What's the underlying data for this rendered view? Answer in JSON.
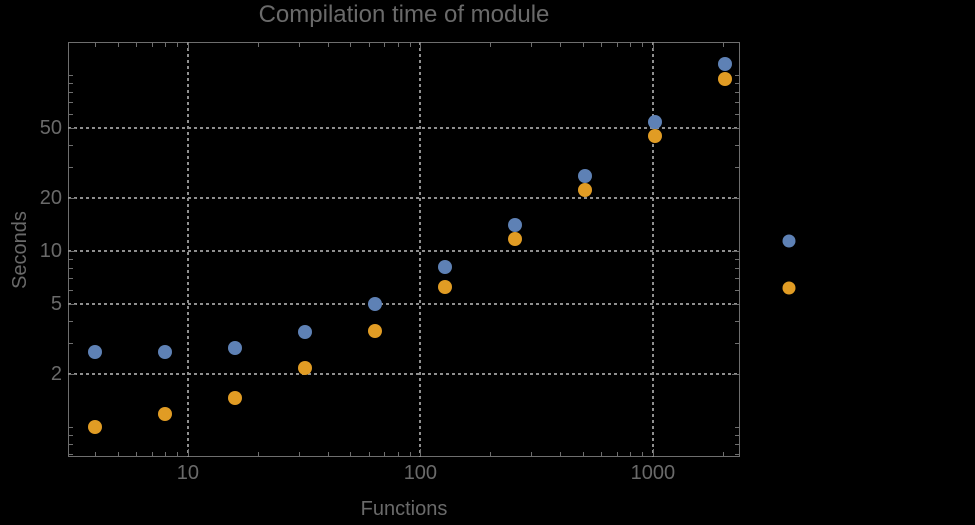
{
  "chart_data": {
    "type": "scatter",
    "title": "Compilation time of module",
    "xlabel": "Functions",
    "ylabel": "Seconds",
    "xscale": "log",
    "yscale": "log",
    "xlim": [
      3.05,
      2370
    ],
    "ylim": [
      0.675,
      154
    ],
    "grid": true,
    "x": [
      4,
      8,
      16,
      32,
      64,
      128,
      256,
      512,
      1024,
      2048
    ],
    "series": [
      {
        "id": "series-1",
        "color": "#5E81B5",
        "values": [
          2.67,
          2.67,
          2.8,
          3.45,
          5.0,
          8.1,
          14.0,
          26.7,
          54,
          115
        ]
      },
      {
        "id": "series-2",
        "color": "#E19C24",
        "values": [
          1.0,
          1.19,
          1.47,
          2.15,
          3.5,
          6.25,
          11.7,
          22.2,
          45,
          95
        ]
      }
    ],
    "x_ticks": {
      "major": [
        {
          "value": 10,
          "label": "10"
        },
        {
          "value": 100,
          "label": "100"
        },
        {
          "value": 1000,
          "label": "1000"
        }
      ],
      "minor": [
        4,
        5,
        6,
        7,
        8,
        9,
        20,
        30,
        40,
        50,
        60,
        70,
        80,
        90,
        200,
        300,
        400,
        500,
        600,
        700,
        800,
        900,
        2000
      ]
    },
    "y_ticks": {
      "major": [
        {
          "value": 50,
          "label": "50"
        },
        {
          "value": 20,
          "label": "20"
        },
        {
          "value": 10,
          "label": "10"
        },
        {
          "value": 5,
          "label": "5"
        },
        {
          "value": 2,
          "label": "2"
        }
      ],
      "minor": [
        0.7,
        0.8,
        0.9,
        1,
        3,
        4,
        6,
        7,
        8,
        9,
        30,
        40,
        60,
        70,
        80,
        90,
        100
      ]
    },
    "legend": {
      "labels_visible": false,
      "markers": [
        {
          "color": "#5E81B5"
        },
        {
          "color": "#E19C24"
        }
      ]
    }
  },
  "styles": {
    "background": "#000000",
    "text_color": "#6a6a6a",
    "frame_color": "#6e6e6e",
    "grid_color": "#8f8f8f"
  }
}
